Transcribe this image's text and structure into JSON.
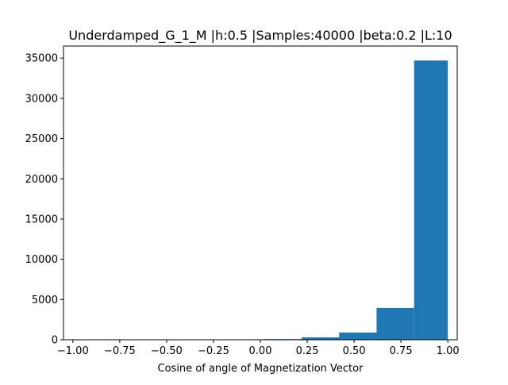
{
  "chart_data": {
    "type": "bar",
    "title": "Underdamped_G_1_M |h:0.5 |Samples:40000 |beta:0.2 |L:10",
    "xlabel": "Cosine of angle of Magnetization Vector",
    "ylabel": "",
    "xlim": [
      -1.05,
      1.05
    ],
    "ylim": [
      0,
      36500
    ],
    "grid": false,
    "bin_edges": [
      -0.99,
      -0.79,
      -0.59,
      -0.39,
      -0.19,
      0.02,
      0.22,
      0.42,
      0.62,
      0.82,
      1.0
    ],
    "values": [
      5,
      8,
      10,
      15,
      25,
      80,
      300,
      900,
      3950,
      34700
    ],
    "bar_color": "#1f77b4",
    "xticks": [
      -1.0,
      -0.75,
      -0.5,
      -0.25,
      0.0,
      0.25,
      0.5,
      0.75,
      1.0
    ],
    "xtick_labels": [
      "−1.00",
      "−0.75",
      "−0.50",
      "−0.25",
      "0.00",
      "0.25",
      "0.50",
      "0.75",
      "1.00"
    ],
    "yticks": [
      0,
      5000,
      10000,
      15000,
      20000,
      25000,
      30000,
      35000
    ],
    "ytick_labels": [
      "0",
      "5000",
      "10000",
      "15000",
      "20000",
      "25000",
      "30000",
      "35000"
    ]
  }
}
